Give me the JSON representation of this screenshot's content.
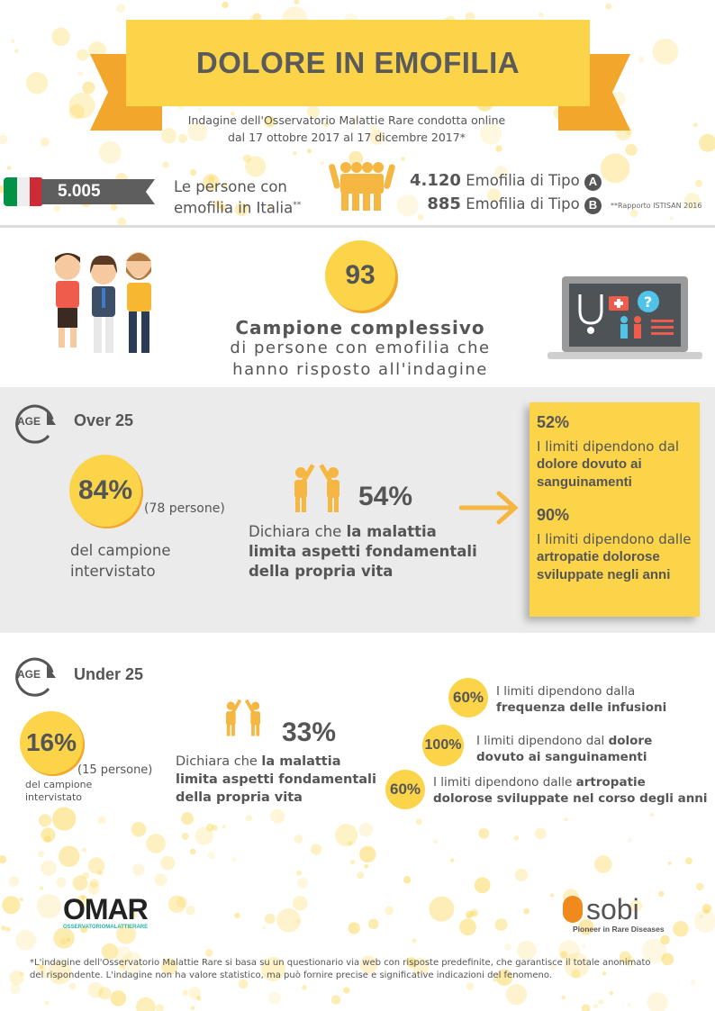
{
  "header": {
    "title": "DOLORE IN EMOFILIA",
    "subtitle_line1": "Indagine dell'Osservatorio Malattie Rare condotta online",
    "subtitle_line2": "dal 17 ottobre 2017 al 17 dicembre 2017*"
  },
  "italy": {
    "total": "5.005",
    "label_line1": "Le persone con",
    "label_line2": "emofilia in Italia",
    "label_mark": "**",
    "type_a_count": "4.120",
    "type_a_label": "Emofilia di Tipo",
    "type_a_badge": "A",
    "type_b_count": "885",
    "type_b_label": "Emofilia di Tipo",
    "type_b_badge": "B",
    "source": "**Rapporto ISTISAN 2016"
  },
  "sample": {
    "value": "93",
    "title": "Campione complessivo",
    "line1": "di persone con emofilia che",
    "line2": "hanno risposto all'indagine"
  },
  "over25": {
    "age_badge": "AGE",
    "title": "Over 25",
    "share": "84%",
    "people": "(78 persone)",
    "share_label_line1": "del campione",
    "share_label_line2": "intervistato",
    "limit_pct": "54%",
    "limit_text_plain": "Dichiara che ",
    "limit_text_bold1": "la malattia",
    "limit_text_bold2": "limita aspetti fondamentali",
    "limit_text_bold3": "della propria vita",
    "box": [
      {
        "pct": "52%",
        "plain": "I limiti dipendono dal",
        "bold1": "dolore dovuto ai",
        "bold2": "sanguinamenti"
      },
      {
        "pct": "90%",
        "plain": "I limiti dipendono dalle",
        "bold1": "artropatie dolorose",
        "bold2": "sviluppate negli anni"
      }
    ]
  },
  "under25": {
    "age_badge": "AGE",
    "title": "Under 25",
    "share": "16%",
    "people": "(15 persone)",
    "share_label_line1": "del campione",
    "share_label_line2": "intervistato",
    "limit_pct": "33%",
    "limit_text_plain": "Dichiara che ",
    "limit_text_bold1": "la malattia",
    "limit_text_bold2": "limita aspetti fondamentali",
    "limit_text_bold3": "della propria vita",
    "items": [
      {
        "pct": "60%",
        "plain": "I limiti dipendono dalla",
        "bold": "frequenza delle infusioni"
      },
      {
        "pct": "100%",
        "plain": "I limiti dipendono dal ",
        "bold_inline": "dolore",
        "bold": "dovuto ai sanguinamenti"
      },
      {
        "pct": "60%",
        "plain": "I limiti dipendono dalle ",
        "bold_inline": "artropatie",
        "bold": "dolorose sviluppate nel corso degli anni"
      }
    ]
  },
  "logos": {
    "omar": "OMAR",
    "omar_sub": "OSSERVATORIOMALATTIERARE",
    "sobi": "sobi",
    "sobi_tagline": "Pioneer in Rare Diseases"
  },
  "footnote": {
    "line1": "*L'indagine dell'Osservatorio Malattie Rare si basa su un questionario via web con risposte predefinite, che garantisce il totale anonimato",
    "line2": "del rispondente. L'indagine non ha valore statistico, ma può fornire precise e significative indicazioni del fenomeno."
  },
  "colors": {
    "yellow": "#fbd44a",
    "orange": "#f2a62b",
    "gray_bg": "#ebebeb",
    "text": "#555555"
  }
}
